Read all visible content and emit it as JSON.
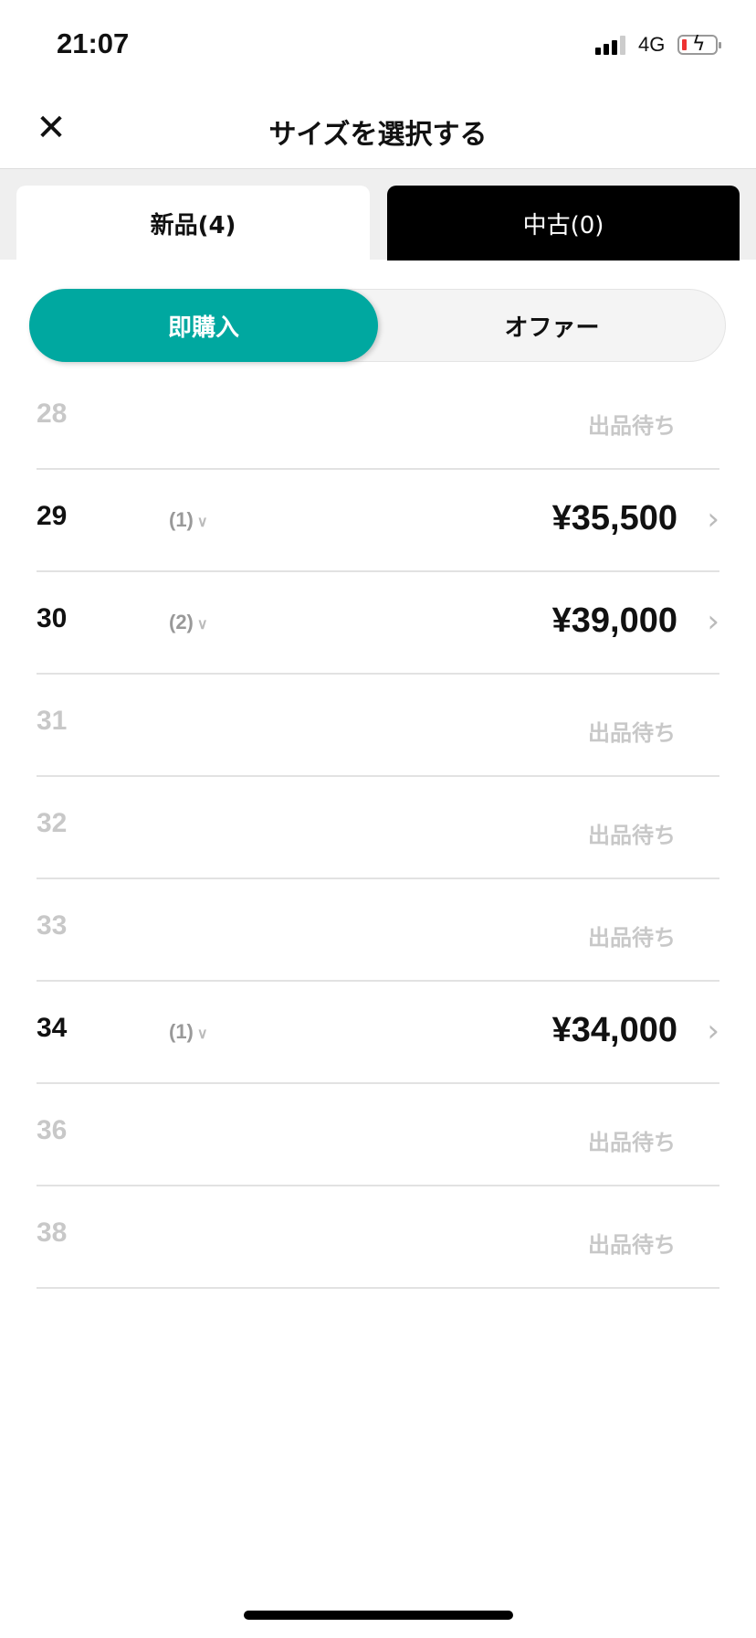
{
  "status_bar": {
    "time": "21:07",
    "network": "4G",
    "battery_icon": "battery-charging-low-icon"
  },
  "header": {
    "title": "サイズを選択する",
    "close_icon": "close-icon"
  },
  "condition_tabs": [
    {
      "label": "新品(4)",
      "selected": true
    },
    {
      "label": "中古(0)",
      "selected": false
    }
  ],
  "mode_toggle": {
    "options": [
      "即購入",
      "オファー"
    ],
    "selected": "即購入",
    "accent": "#00a8a0"
  },
  "sizes": [
    {
      "size": "28",
      "status": "出品待ち"
    },
    {
      "size": "29",
      "count": "(1)",
      "price": "¥35,500"
    },
    {
      "size": "30",
      "count": "(2)",
      "price": "¥39,000"
    },
    {
      "size": "31",
      "status": "出品待ち"
    },
    {
      "size": "32",
      "status": "出品待ち"
    },
    {
      "size": "33",
      "status": "出品待ち"
    },
    {
      "size": "34",
      "count": "(1)",
      "price": "¥34,000"
    },
    {
      "size": "36",
      "status": "出品待ち"
    },
    {
      "size": "38",
      "status": "出品待ち"
    }
  ]
}
